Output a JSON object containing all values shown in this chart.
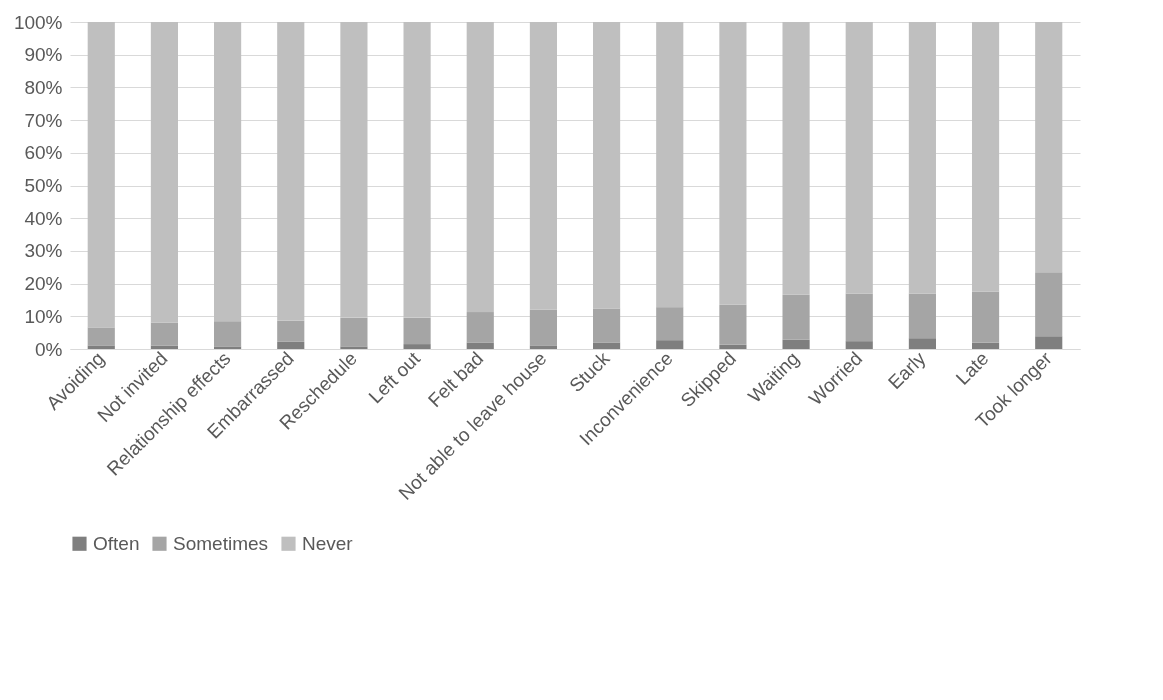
{
  "chart_data": {
    "type": "bar",
    "stacked": true,
    "grid": "y",
    "legend": "bottom",
    "categories": [
      "Avoiding",
      "Not invited",
      "Relationship effects",
      "Embarrassed",
      "Reschedule",
      "Left out",
      "Felt bad",
      "Not able to leave house",
      "Stuck",
      "Inconvenience",
      "Skipped",
      "Waiting",
      "Worried",
      "Early",
      "Late",
      "Took longer"
    ],
    "ylim": [
      0,
      100
    ],
    "yticks": [
      {
        "value": 0,
        "label": "0%"
      },
      {
        "value": 10,
        "label": "10%"
      },
      {
        "value": 20,
        "label": "20%"
      },
      {
        "value": 30,
        "label": "30%"
      },
      {
        "value": 40,
        "label": "40%"
      },
      {
        "value": 50,
        "label": "50%"
      },
      {
        "value": 60,
        "label": "60%"
      },
      {
        "value": 70,
        "label": "70%"
      },
      {
        "value": 80,
        "label": "80%"
      },
      {
        "value": 90,
        "label": "90%"
      },
      {
        "value": 100,
        "label": "100%"
      }
    ],
    "series": [
      {
        "name": "Often",
        "color": "#7f7f7f",
        "values": [
          1.1,
          1.1,
          0.8,
          2.2,
          0.8,
          1.5,
          2.0,
          1.1,
          2.0,
          2.7,
          1.3,
          2.9,
          2.4,
          3.3,
          1.9,
          3.9
        ]
      },
      {
        "name": "Sometimes",
        "color": "#a5a5a5",
        "values": [
          5.5,
          7.0,
          7.7,
          6.5,
          8.8,
          8.1,
          9.3,
          10.9,
          10.4,
          10.1,
          12.2,
          13.7,
          14.6,
          13.7,
          15.7,
          19.6
        ]
      },
      {
        "name": "Never",
        "color": "#bfbfbf",
        "values": [
          93.4,
          91.9,
          91.5,
          91.3,
          90.4,
          90.4,
          88.7,
          88.0,
          87.6,
          87.2,
          86.5,
          83.4,
          83.0,
          83.0,
          82.4,
          76.5
        ]
      }
    ]
  }
}
